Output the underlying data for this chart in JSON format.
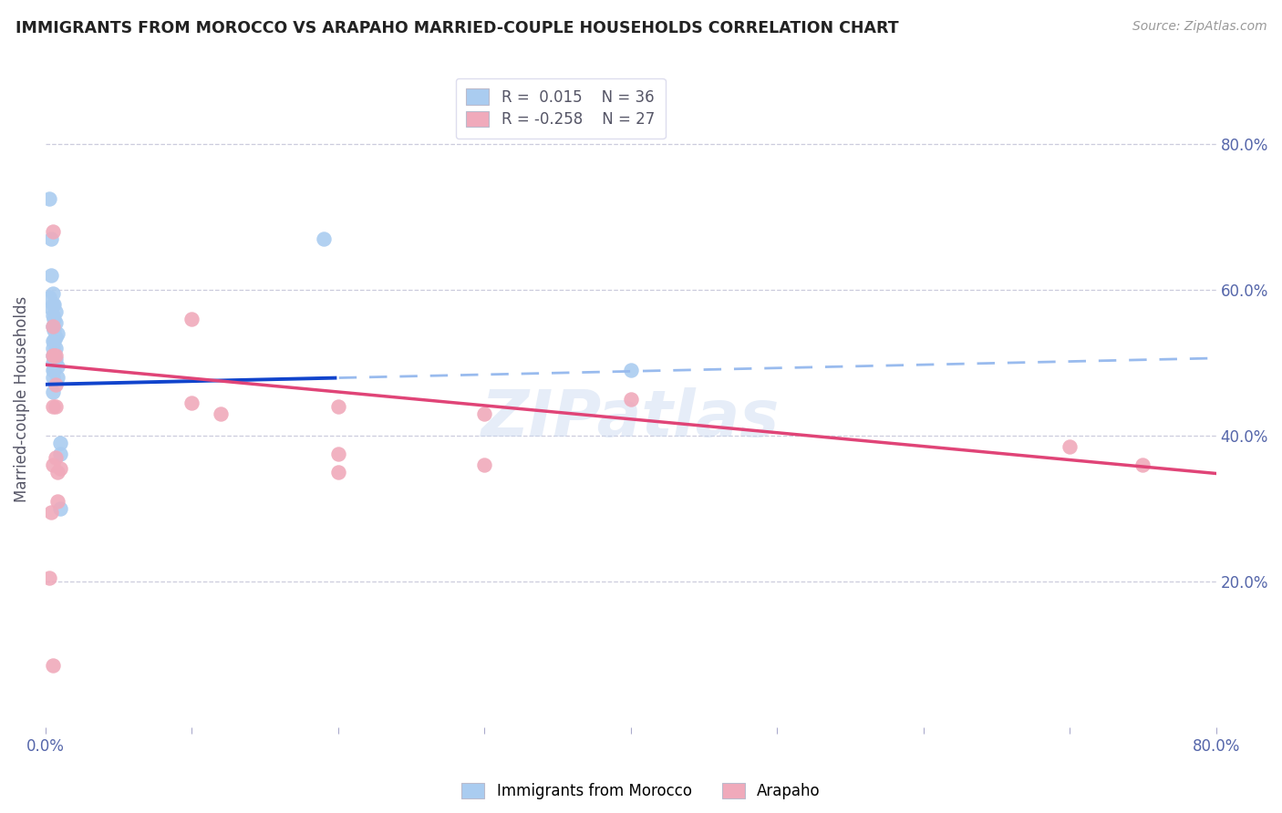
{
  "title": "IMMIGRANTS FROM MOROCCO VS ARAPAHO MARRIED-COUPLE HOUSEHOLDS CORRELATION CHART",
  "source": "Source: ZipAtlas.com",
  "ylabel": "Married-couple Households",
  "xlim": [
    0.0,
    0.8
  ],
  "ylim": [
    0.0,
    0.9
  ],
  "legend_r1": "R =  0.015",
  "legend_n1": "N = 36",
  "legend_r2": "R = -0.258",
  "legend_n2": "N = 27",
  "color_blue": "#aaccf0",
  "color_pink": "#f0aabb",
  "line_color_blue_solid": "#1144cc",
  "line_color_blue_dash": "#99bbee",
  "line_color_pink": "#e04477",
  "watermark": "ZIPatlas",
  "blue_line_x0": 0.0,
  "blue_line_y0": 0.47,
  "blue_line_x1": 0.8,
  "blue_line_y1": 0.506,
  "blue_line_split": 0.2,
  "pink_line_x0": 0.0,
  "pink_line_y0": 0.497,
  "pink_line_x1": 0.8,
  "pink_line_y1": 0.348,
  "blue_x": [
    0.003,
    0.003,
    0.004,
    0.004,
    0.004,
    0.005,
    0.005,
    0.005,
    0.005,
    0.005,
    0.005,
    0.005,
    0.005,
    0.005,
    0.005,
    0.006,
    0.006,
    0.006,
    0.006,
    0.006,
    0.006,
    0.006,
    0.007,
    0.007,
    0.007,
    0.007,
    0.007,
    0.008,
    0.008,
    0.008,
    0.01,
    0.01,
    0.01,
    0.19,
    0.4,
    0.005
  ],
  "blue_y": [
    0.725,
    0.59,
    0.67,
    0.62,
    0.575,
    0.595,
    0.58,
    0.565,
    0.55,
    0.53,
    0.52,
    0.51,
    0.5,
    0.49,
    0.48,
    0.58,
    0.56,
    0.545,
    0.53,
    0.51,
    0.5,
    0.49,
    0.57,
    0.555,
    0.535,
    0.52,
    0.505,
    0.54,
    0.495,
    0.48,
    0.39,
    0.375,
    0.3,
    0.67,
    0.49,
    0.46
  ],
  "pink_x": [
    0.003,
    0.004,
    0.005,
    0.005,
    0.005,
    0.005,
    0.005,
    0.006,
    0.007,
    0.007,
    0.007,
    0.007,
    0.008,
    0.008,
    0.01,
    0.1,
    0.1,
    0.12,
    0.2,
    0.2,
    0.2,
    0.3,
    0.3,
    0.4,
    0.7,
    0.75,
    0.005
  ],
  "pink_y": [
    0.205,
    0.295,
    0.68,
    0.55,
    0.51,
    0.44,
    0.36,
    0.51,
    0.51,
    0.47,
    0.44,
    0.37,
    0.35,
    0.31,
    0.355,
    0.56,
    0.445,
    0.43,
    0.44,
    0.375,
    0.35,
    0.43,
    0.36,
    0.45,
    0.385,
    0.36,
    0.085
  ]
}
